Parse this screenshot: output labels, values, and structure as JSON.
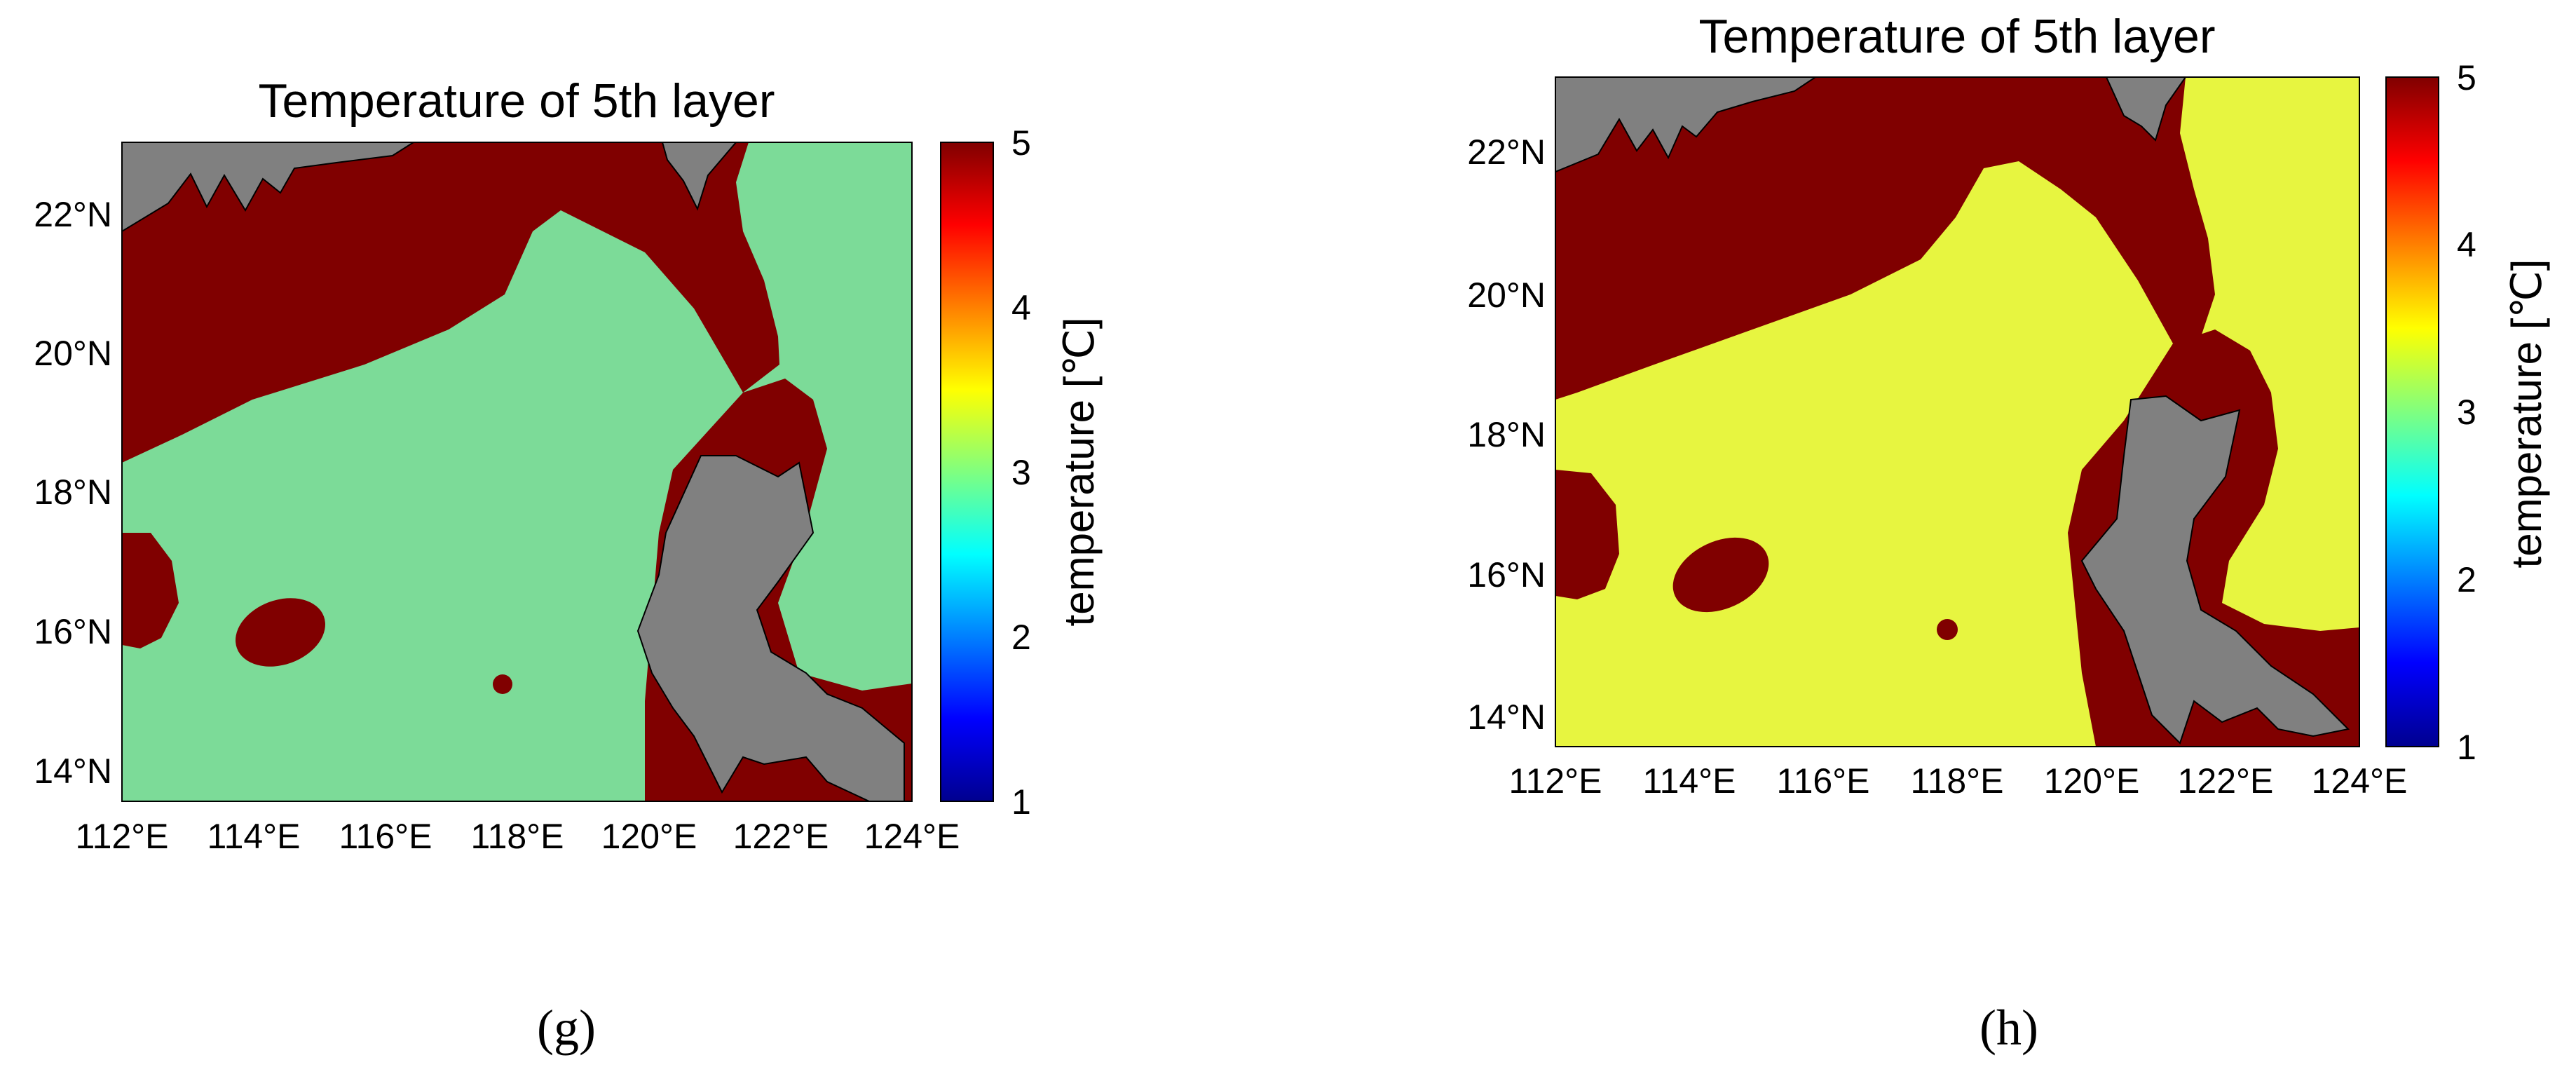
{
  "panels": [
    {
      "id": "g",
      "panel_label": "(g)",
      "title": "Temperature of 5th layer",
      "colorbar": {
        "label": "temperature [℃]",
        "ticks": [
          "1",
          "2",
          "3",
          "4",
          "5"
        ]
      },
      "x_ticks": [
        "112°E",
        "114°E",
        "116°E",
        "118°E",
        "120°E",
        "122°E",
        "124°E"
      ],
      "y_ticks": [
        "14°N",
        "16°N",
        "18°N",
        "20°N",
        "22°N"
      ],
      "sea_color": "#7cdb98",
      "coastal_color": "#800000",
      "land_color": "#808080"
    },
    {
      "id": "h",
      "panel_label": "(h)",
      "title": "Temperature of 5th layer",
      "colorbar": {
        "label": "temperature [℃]",
        "ticks": [
          "1",
          "2",
          "3",
          "4",
          "5"
        ]
      },
      "x_ticks": [
        "112°E",
        "114°E",
        "116°E",
        "118°E",
        "120°E",
        "122°E",
        "124°E"
      ],
      "y_ticks": [
        "14°N",
        "16°N",
        "18°N",
        "20°N",
        "22°N"
      ],
      "sea_color": "#e7f540",
      "coastal_color": "#800000",
      "land_color": "#808080"
    }
  ]
}
